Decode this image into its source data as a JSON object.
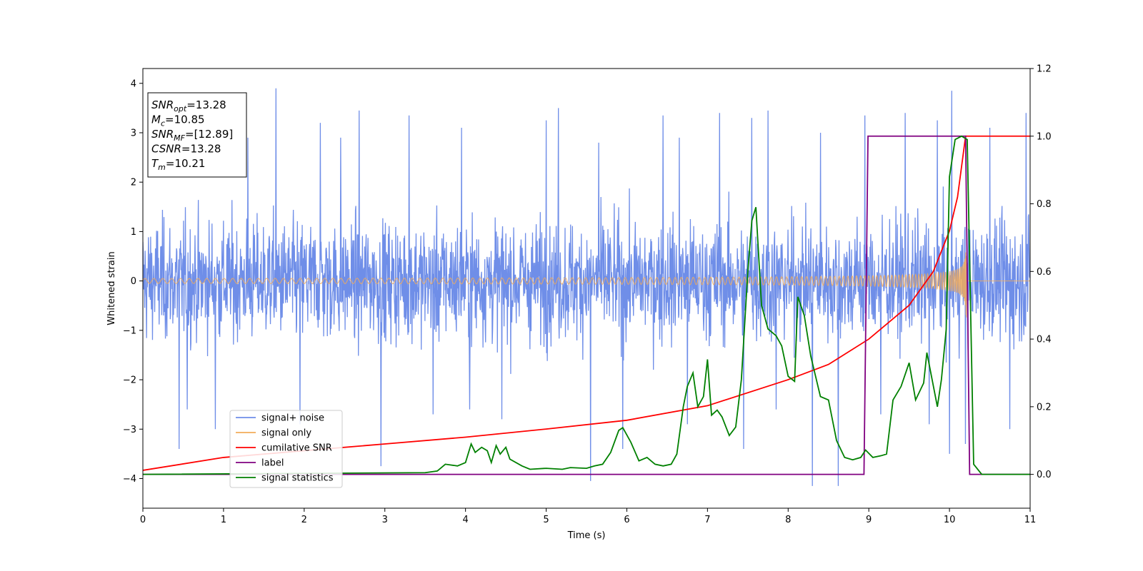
{
  "chart_data": {
    "type": "line",
    "xlabel": "Time (s)",
    "ylabel": "Whitened strain",
    "xlim": [
      0,
      11
    ],
    "ylim": [
      -4.6,
      4.3
    ],
    "y2lim": [
      -0.1,
      1.2
    ],
    "x_ticks": [
      "0",
      "1",
      "2",
      "3",
      "4",
      "5",
      "6",
      "7",
      "8",
      "9",
      "10",
      "11"
    ],
    "y_ticks": [
      "−4",
      "−3",
      "−2",
      "−1",
      "0",
      "1",
      "2",
      "3",
      "4"
    ],
    "y2_ticks": [
      "0.0",
      "0.2",
      "0.4",
      "0.6",
      "0.8",
      "1.0",
      "1.2"
    ],
    "grid": false,
    "legend_position": "lower-left",
    "info_box": [
      {
        "sym": "SNR",
        "sub": "opt",
        "value": "=13.28"
      },
      {
        "sym": "M",
        "sub": "c",
        "value": "=10.85"
      },
      {
        "sym": "SNR",
        "sub": "MF",
        "value": "=[12.89]"
      },
      {
        "sym": "CSNR",
        "sub": "",
        "value": "=13.28"
      },
      {
        "sym": "T",
        "sub": "m",
        "value": "=10.21"
      }
    ],
    "series": [
      {
        "name": "signal+ noise",
        "color": "#6f8ee8",
        "axis": "left",
        "description": "noisy whitened strain, roughly ±2.2 envelope with spikes to about ±3.9",
        "spikes": [
          [
            0.45,
            -3.4
          ],
          [
            0.55,
            -2.6
          ],
          [
            0.9,
            -3.0
          ],
          [
            1.3,
            2.9
          ],
          [
            1.65,
            3.9
          ],
          [
            1.95,
            -2.9
          ],
          [
            2.2,
            3.2
          ],
          [
            2.45,
            2.9
          ],
          [
            2.68,
            3.45
          ],
          [
            2.95,
            -3.75
          ],
          [
            3.3,
            3.35
          ],
          [
            3.6,
            -2.7
          ],
          [
            3.95,
            3.1
          ],
          [
            4.05,
            -2.6
          ],
          [
            4.45,
            -2.8
          ],
          [
            5.0,
            3.25
          ],
          [
            5.15,
            3.5
          ],
          [
            5.55,
            -4.05
          ],
          [
            5.65,
            2.8
          ],
          [
            5.95,
            -3.4
          ],
          [
            6.45,
            3.35
          ],
          [
            6.65,
            2.9
          ],
          [
            6.75,
            -2.9
          ],
          [
            7.15,
            3.4
          ],
          [
            7.45,
            -3.4
          ],
          [
            7.55,
            3.3
          ],
          [
            7.75,
            3.45
          ],
          [
            7.85,
            -2.6
          ],
          [
            8.3,
            -4.15
          ],
          [
            8.4,
            3.0
          ],
          [
            8.62,
            -4.15
          ],
          [
            8.95,
            3.35
          ],
          [
            9.15,
            -2.7
          ],
          [
            9.45,
            3.4
          ],
          [
            9.75,
            -2.9
          ],
          [
            9.85,
            3.25
          ],
          [
            10.0,
            -3.5
          ],
          [
            10.03,
            3.85
          ],
          [
            10.2,
            -3.3
          ],
          [
            10.5,
            3.1
          ],
          [
            10.75,
            -3.0
          ],
          [
            10.95,
            3.4
          ]
        ]
      },
      {
        "name": "signal only",
        "color": "#f2ac5a",
        "axis": "left",
        "description": "chirp oscillation whose amplitude grows from about 0.05 to 1.75 before merger at t≈10.2, then zero",
        "merger_time": 10.21
      },
      {
        "name": "cumilative SNR",
        "color": "#ff0000",
        "axis": "right",
        "points": [
          [
            0,
            0.012
          ],
          [
            1,
            0.05
          ],
          [
            2,
            0.07
          ],
          [
            3,
            0.09
          ],
          [
            4,
            0.11
          ],
          [
            5,
            0.134
          ],
          [
            6,
            0.16
          ],
          [
            7,
            0.203
          ],
          [
            8,
            0.28
          ],
          [
            8.5,
            0.325
          ],
          [
            9,
            0.4
          ],
          [
            9.5,
            0.5
          ],
          [
            9.8,
            0.6
          ],
          [
            10.0,
            0.72
          ],
          [
            10.1,
            0.82
          ],
          [
            10.2,
            1.0
          ],
          [
            11,
            1.0
          ]
        ]
      },
      {
        "name": "label",
        "color": "#800080",
        "axis": "right",
        "points": [
          [
            0,
            0.0
          ],
          [
            8.94,
            0.0
          ],
          [
            8.99,
            1.0
          ],
          [
            10.2,
            1.0
          ],
          [
            10.25,
            0.0
          ],
          [
            11,
            0.0
          ]
        ]
      },
      {
        "name": "signal statistics",
        "color": "#008000",
        "axis": "right",
        "points": [
          [
            0,
            0.0
          ],
          [
            3.5,
            0.005
          ],
          [
            3.65,
            0.01
          ],
          [
            3.75,
            0.03
          ],
          [
            3.9,
            0.025
          ],
          [
            4.0,
            0.035
          ],
          [
            4.07,
            0.09
          ],
          [
            4.12,
            0.065
          ],
          [
            4.2,
            0.08
          ],
          [
            4.27,
            0.07
          ],
          [
            4.32,
            0.035
          ],
          [
            4.38,
            0.085
          ],
          [
            4.43,
            0.06
          ],
          [
            4.5,
            0.08
          ],
          [
            4.55,
            0.045
          ],
          [
            4.7,
            0.025
          ],
          [
            4.8,
            0.015
          ],
          [
            5.0,
            0.018
          ],
          [
            5.2,
            0.015
          ],
          [
            5.3,
            0.02
          ],
          [
            5.5,
            0.018
          ],
          [
            5.6,
            0.025
          ],
          [
            5.7,
            0.03
          ],
          [
            5.8,
            0.065
          ],
          [
            5.9,
            0.13
          ],
          [
            5.95,
            0.138
          ],
          [
            6.05,
            0.095
          ],
          [
            6.15,
            0.04
          ],
          [
            6.25,
            0.05
          ],
          [
            6.35,
            0.03
          ],
          [
            6.45,
            0.025
          ],
          [
            6.55,
            0.03
          ],
          [
            6.62,
            0.06
          ],
          [
            6.7,
            0.2
          ],
          [
            6.75,
            0.26
          ],
          [
            6.82,
            0.3
          ],
          [
            6.88,
            0.2
          ],
          [
            6.95,
            0.23
          ],
          [
            7.0,
            0.34
          ],
          [
            7.05,
            0.175
          ],
          [
            7.12,
            0.19
          ],
          [
            7.18,
            0.17
          ],
          [
            7.27,
            0.115
          ],
          [
            7.35,
            0.14
          ],
          [
            7.42,
            0.28
          ],
          [
            7.5,
            0.6
          ],
          [
            7.55,
            0.75
          ],
          [
            7.6,
            0.79
          ],
          [
            7.67,
            0.5
          ],
          [
            7.75,
            0.43
          ],
          [
            7.85,
            0.41
          ],
          [
            7.92,
            0.38
          ],
          [
            8.0,
            0.29
          ],
          [
            8.08,
            0.275
          ],
          [
            8.12,
            0.525
          ],
          [
            8.2,
            0.47
          ],
          [
            8.28,
            0.35
          ],
          [
            8.33,
            0.3
          ],
          [
            8.4,
            0.23
          ],
          [
            8.5,
            0.22
          ],
          [
            8.6,
            0.1
          ],
          [
            8.7,
            0.05
          ],
          [
            8.8,
            0.043
          ],
          [
            8.9,
            0.05
          ],
          [
            8.96,
            0.072
          ],
          [
            9.05,
            0.05
          ],
          [
            9.15,
            0.055
          ],
          [
            9.22,
            0.06
          ],
          [
            9.3,
            0.22
          ],
          [
            9.4,
            0.26
          ],
          [
            9.5,
            0.33
          ],
          [
            9.58,
            0.22
          ],
          [
            9.68,
            0.27
          ],
          [
            9.72,
            0.36
          ],
          [
            9.85,
            0.2
          ],
          [
            9.9,
            0.28
          ],
          [
            9.96,
            0.43
          ],
          [
            10.0,
            0.88
          ],
          [
            10.07,
            0.99
          ],
          [
            10.15,
            1.0
          ],
          [
            10.22,
            0.99
          ],
          [
            10.3,
            0.03
          ],
          [
            10.4,
            0.0
          ],
          [
            11,
            0.0
          ]
        ]
      }
    ]
  }
}
